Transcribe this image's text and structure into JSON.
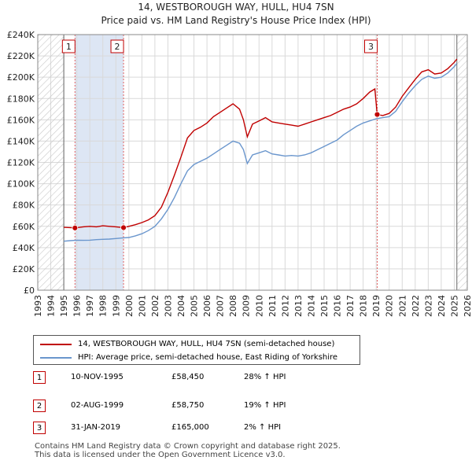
{
  "chart_data": {
    "type": "line",
    "title_line1": "14, WESTBOROUGH WAY, HULL, HU4 7SN",
    "title_line2": "Price paid vs. HM Land Registry's House Price Index (HPI)",
    "ylim": [
      0,
      240000
    ],
    "xlim": [
      1993,
      2026
    ],
    "y_ticks": [
      {
        "value": 0,
        "label": "£0"
      },
      {
        "value": 20000,
        "label": "£20K"
      },
      {
        "value": 40000,
        "label": "£40K"
      },
      {
        "value": 60000,
        "label": "£60K"
      },
      {
        "value": 80000,
        "label": "£80K"
      },
      {
        "value": 100000,
        "label": "£100K"
      },
      {
        "value": 120000,
        "label": "£120K"
      },
      {
        "value": 140000,
        "label": "£140K"
      },
      {
        "value": 160000,
        "label": "£160K"
      },
      {
        "value": 180000,
        "label": "£180K"
      },
      {
        "value": 200000,
        "label": "£200K"
      },
      {
        "value": 220000,
        "label": "£220K"
      },
      {
        "value": 240000,
        "label": "£240K"
      }
    ],
    "x_ticks": [
      "1993",
      "1994",
      "1995",
      "1996",
      "1997",
      "1998",
      "1999",
      "2000",
      "2001",
      "2002",
      "2003",
      "2004",
      "2005",
      "2006",
      "2007",
      "2008",
      "2009",
      "2010",
      "2011",
      "2012",
      "2013",
      "2014",
      "2015",
      "2016",
      "2017",
      "2018",
      "2019",
      "2020",
      "2021",
      "2022",
      "2023",
      "2024",
      "2025",
      "2026"
    ],
    "hatched_before": 1995.0,
    "hatched_after": 2025.2,
    "series": [
      {
        "name": "14, WESTBOROUGH WAY, HULL, HU4 7SN (semi-detached house)",
        "color": "#c00000",
        "points": [
          [
            1995.0,
            59000
          ],
          [
            1995.5,
            58800
          ],
          [
            1995.86,
            58450
          ],
          [
            1996.5,
            59500
          ],
          [
            1997.0,
            60000
          ],
          [
            1997.5,
            59500
          ],
          [
            1998.0,
            60500
          ],
          [
            1998.5,
            60000
          ],
          [
            1999.0,
            59500
          ],
          [
            1999.59,
            58750
          ],
          [
            2000.0,
            60000
          ],
          [
            2000.5,
            61500
          ],
          [
            2001.0,
            63500
          ],
          [
            2001.5,
            66000
          ],
          [
            2002.0,
            70000
          ],
          [
            2002.5,
            78000
          ],
          [
            2003.0,
            92000
          ],
          [
            2003.5,
            108000
          ],
          [
            2004.0,
            125000
          ],
          [
            2004.5,
            143000
          ],
          [
            2005.0,
            150000
          ],
          [
            2005.5,
            153000
          ],
          [
            2006.0,
            157000
          ],
          [
            2006.5,
            163000
          ],
          [
            2007.0,
            167000
          ],
          [
            2007.5,
            171000
          ],
          [
            2008.0,
            175000
          ],
          [
            2008.5,
            170000
          ],
          [
            2008.8,
            160000
          ],
          [
            2009.1,
            144000
          ],
          [
            2009.5,
            156000
          ],
          [
            2010.0,
            159000
          ],
          [
            2010.5,
            162000
          ],
          [
            2011.0,
            158000
          ],
          [
            2011.5,
            157000
          ],
          [
            2012.0,
            156000
          ],
          [
            2012.5,
            155000
          ],
          [
            2013.0,
            154000
          ],
          [
            2013.5,
            156000
          ],
          [
            2014.0,
            158000
          ],
          [
            2014.5,
            160000
          ],
          [
            2015.0,
            162000
          ],
          [
            2015.5,
            164000
          ],
          [
            2016.0,
            167000
          ],
          [
            2016.5,
            170000
          ],
          [
            2017.0,
            172000
          ],
          [
            2017.5,
            175000
          ],
          [
            2018.0,
            180000
          ],
          [
            2018.5,
            186000
          ],
          [
            2018.9,
            189000
          ],
          [
            2019.08,
            165000
          ],
          [
            2019.5,
            164000
          ],
          [
            2020.0,
            166000
          ],
          [
            2020.5,
            172000
          ],
          [
            2021.0,
            182000
          ],
          [
            2021.5,
            190000
          ],
          [
            2022.0,
            198000
          ],
          [
            2022.5,
            205000
          ],
          [
            2023.0,
            207000
          ],
          [
            2023.5,
            203000
          ],
          [
            2024.0,
            204000
          ],
          [
            2024.5,
            208000
          ],
          [
            2025.0,
            214000
          ],
          [
            2025.2,
            217000
          ]
        ]
      },
      {
        "name": "HPI: Average price, semi-detached house, East Riding of Yorkshire",
        "color": "#6a96cd",
        "points": [
          [
            1995.0,
            46000
          ],
          [
            1995.5,
            46500
          ],
          [
            1996.0,
            47000
          ],
          [
            1996.5,
            46800
          ],
          [
            1997.0,
            47000
          ],
          [
            1997.5,
            47500
          ],
          [
            1998.0,
            47800
          ],
          [
            1998.5,
            48000
          ],
          [
            1999.0,
            48500
          ],
          [
            1999.5,
            49000
          ],
          [
            2000.0,
            49500
          ],
          [
            2000.5,
            51000
          ],
          [
            2001.0,
            53000
          ],
          [
            2001.5,
            56000
          ],
          [
            2002.0,
            60000
          ],
          [
            2002.5,
            67000
          ],
          [
            2003.0,
            76000
          ],
          [
            2003.5,
            87000
          ],
          [
            2004.0,
            100000
          ],
          [
            2004.5,
            112000
          ],
          [
            2005.0,
            118000
          ],
          [
            2005.5,
            121000
          ],
          [
            2006.0,
            124000
          ],
          [
            2006.5,
            128000
          ],
          [
            2007.0,
            132000
          ],
          [
            2007.5,
            136000
          ],
          [
            2008.0,
            140000
          ],
          [
            2008.5,
            138000
          ],
          [
            2008.8,
            132000
          ],
          [
            2009.1,
            119000
          ],
          [
            2009.5,
            127000
          ],
          [
            2010.0,
            129000
          ],
          [
            2010.5,
            131000
          ],
          [
            2011.0,
            128000
          ],
          [
            2011.5,
            127000
          ],
          [
            2012.0,
            126000
          ],
          [
            2012.5,
            126500
          ],
          [
            2013.0,
            126000
          ],
          [
            2013.5,
            127000
          ],
          [
            2014.0,
            129000
          ],
          [
            2014.5,
            132000
          ],
          [
            2015.0,
            135000
          ],
          [
            2015.5,
            138000
          ],
          [
            2016.0,
            141000
          ],
          [
            2016.5,
            146000
          ],
          [
            2017.0,
            150000
          ],
          [
            2017.5,
            154000
          ],
          [
            2018.0,
            157000
          ],
          [
            2018.5,
            159000
          ],
          [
            2019.0,
            161000
          ],
          [
            2019.5,
            162000
          ],
          [
            2020.0,
            163000
          ],
          [
            2020.5,
            168000
          ],
          [
            2021.0,
            177000
          ],
          [
            2021.5,
            185000
          ],
          [
            2022.0,
            192000
          ],
          [
            2022.5,
            198000
          ],
          [
            2023.0,
            201000
          ],
          [
            2023.5,
            199000
          ],
          [
            2024.0,
            200000
          ],
          [
            2024.5,
            204000
          ],
          [
            2025.0,
            210000
          ],
          [
            2025.2,
            213000
          ]
        ]
      }
    ],
    "sales": [
      {
        "id": "1",
        "x": 1995.86,
        "price": 58450
      },
      {
        "id": "2",
        "x": 1999.59,
        "price": 58750
      },
      {
        "id": "3",
        "x": 2019.08,
        "price": 165000
      }
    ]
  },
  "legend": {
    "property": "14, WESTBOROUGH WAY, HULL, HU4 7SN (semi-detached house)",
    "hpi": "HPI: Average price, semi-detached house, East Riding of Yorkshire"
  },
  "transactions": [
    {
      "num": "1",
      "date": "10-NOV-1995",
      "price": "£58,450",
      "hpi": "28% ↑ HPI"
    },
    {
      "num": "2",
      "date": "02-AUG-1999",
      "price": "£58,750",
      "hpi": "19% ↑ HPI"
    },
    {
      "num": "3",
      "date": "31-JAN-2019",
      "price": "£165,000",
      "hpi": "2% ↑ HPI"
    }
  ],
  "footer": {
    "line1": "Contains HM Land Registry data © Crown copyright and database right 2025.",
    "line2": "This data is licensed under the Open Government Licence v3.0."
  },
  "colors": {
    "property_line": "#c00000",
    "hpi_line": "#6a96cd",
    "grid": "#d9d9d9",
    "sale_band": "#dde6f4"
  }
}
